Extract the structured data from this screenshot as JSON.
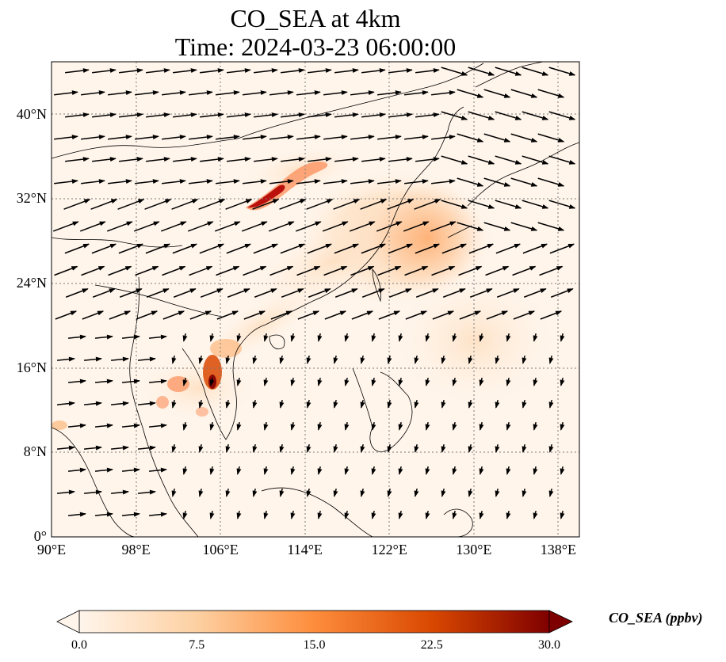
{
  "map": {
    "title_line1": "CO_SEA at 4km",
    "title_line2": "Time: 2024-03-23 06:00:00",
    "extent": {
      "lon_min": 90,
      "lon_max": 140,
      "lat_min": 0,
      "lat_max": 45
    },
    "lon_ticks": [
      {
        "value": 90,
        "label": "90°E"
      },
      {
        "value": 98,
        "label": "98°E"
      },
      {
        "value": 106,
        "label": "106°E"
      },
      {
        "value": 114,
        "label": "114°E"
      },
      {
        "value": 122,
        "label": "122°E"
      },
      {
        "value": 130,
        "label": "130°E"
      },
      {
        "value": 138,
        "label": "138°E"
      }
    ],
    "lat_ticks": [
      {
        "value": 0,
        "label": "0°"
      },
      {
        "value": 8,
        "label": "8°N"
      },
      {
        "value": 16,
        "label": "16°N"
      },
      {
        "value": 24,
        "label": "24°N"
      },
      {
        "value": 32,
        "label": "32°N"
      },
      {
        "value": 40,
        "label": "40°N"
      }
    ],
    "gridlines": true,
    "overlay": "wind-vectors"
  },
  "colorbar": {
    "label": "CO_SEA (ppbv)",
    "min": 0.0,
    "max": 30.0,
    "extend": "both",
    "colormap": [
      "#fff5eb",
      "#fdd0a2",
      "#fd8d3c",
      "#d94801",
      "#7f0000"
    ],
    "ticks": [
      "0.0",
      "7.5",
      "15.0",
      "22.5",
      "30.0"
    ]
  }
}
